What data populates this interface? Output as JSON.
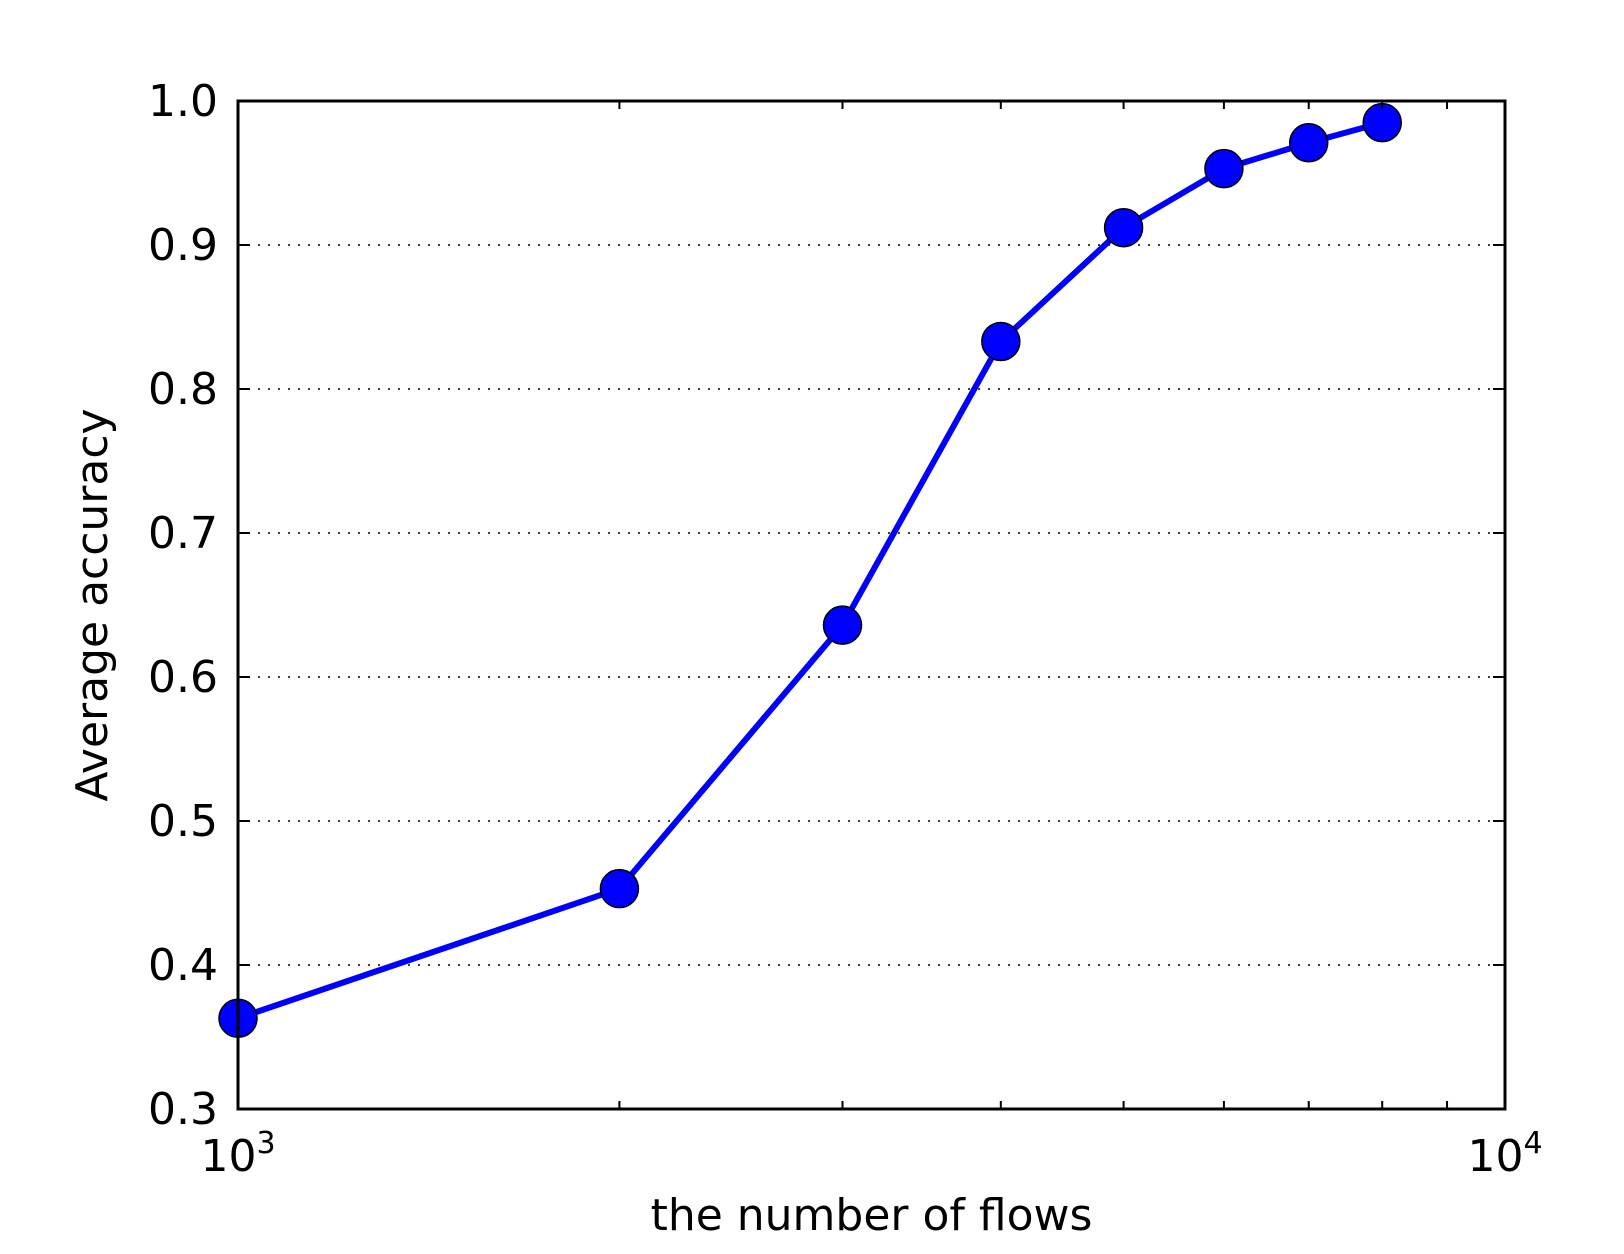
{
  "chart_data": {
    "type": "line",
    "title": "",
    "xlabel": "the number of flows",
    "ylabel": "Average accuracy",
    "xscale": "log",
    "xlim": [
      1000,
      10000
    ],
    "ylim": [
      0.3,
      1.0
    ],
    "grid": "y-dotted",
    "x_tick_labels": [
      {
        "value": 1000,
        "base": "10",
        "exp": "3"
      },
      {
        "value": 10000,
        "base": "10",
        "exp": "4"
      }
    ],
    "x_minor_ticks": [
      2000,
      3000,
      4000,
      5000,
      6000,
      7000,
      8000,
      9000
    ],
    "y_ticks": [
      0.3,
      0.4,
      0.5,
      0.6,
      0.7,
      0.8,
      0.9,
      1.0
    ],
    "y_tick_labels": [
      "0.3",
      "0.4",
      "0.5",
      "0.6",
      "0.7",
      "0.8",
      "0.9",
      "1.0"
    ],
    "series": [
      {
        "color": "#0000ff",
        "marker": "circle",
        "x": [
          1000,
          2000,
          3000,
          4000,
          5000,
          6000,
          7000,
          8000
        ],
        "y": [
          0.363,
          0.453,
          0.636,
          0.833,
          0.912,
          0.953,
          0.971,
          0.985
        ]
      }
    ]
  }
}
